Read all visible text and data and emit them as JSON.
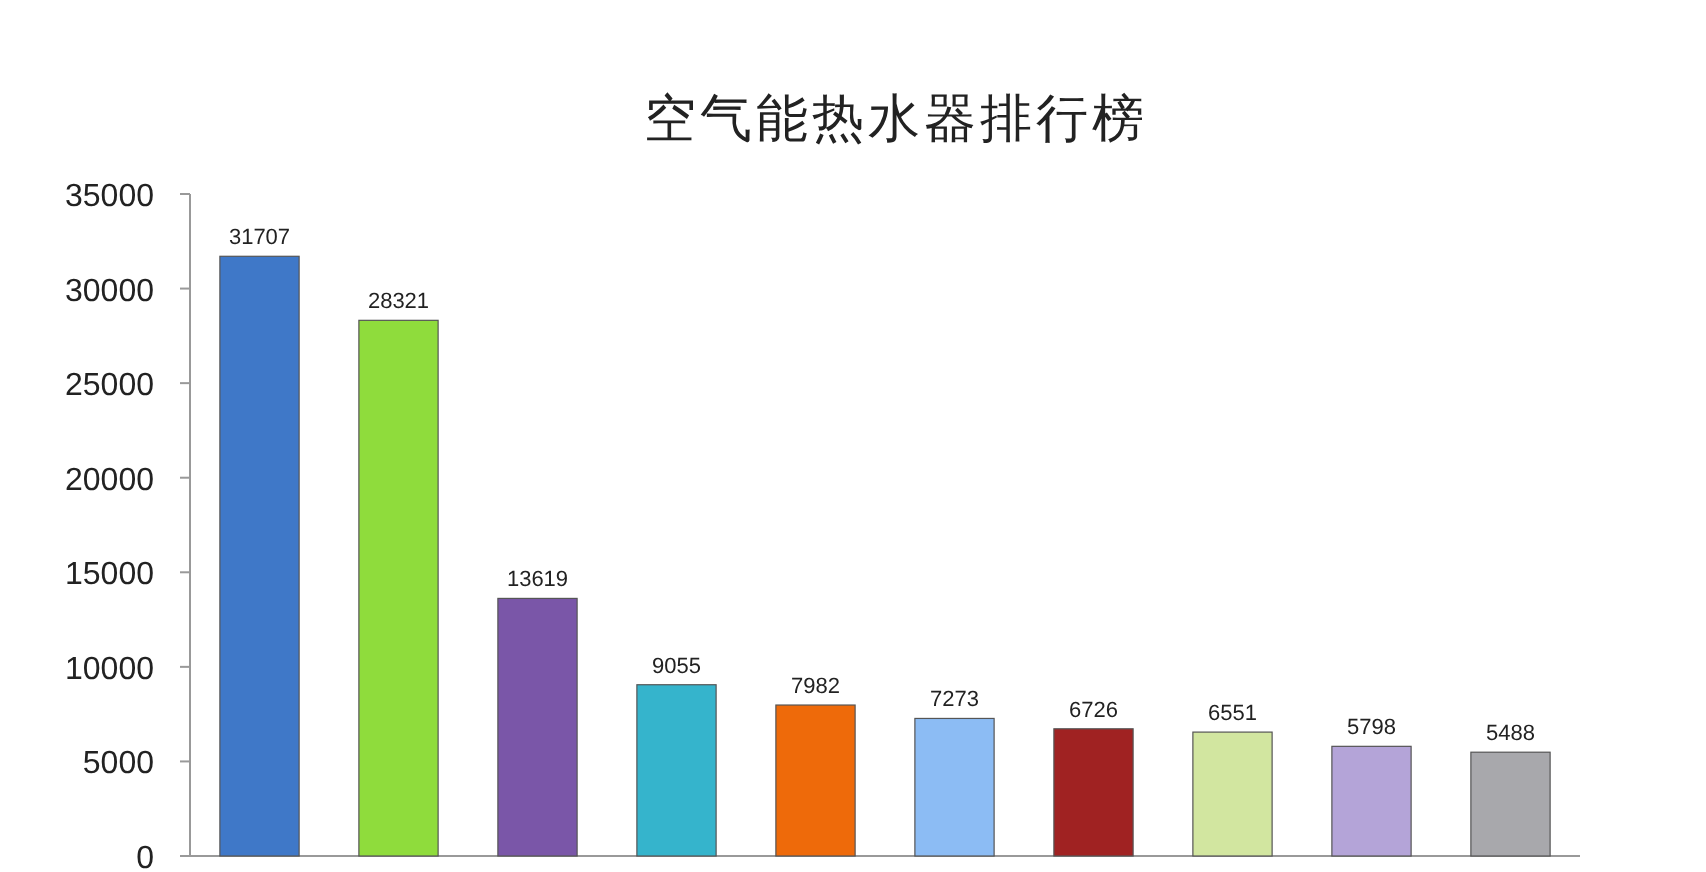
{
  "chart_data": {
    "type": "bar",
    "title": "空气能热水器排行榜",
    "categories": [
      null,
      null,
      null,
      null,
      null,
      null,
      null,
      null,
      null,
      null
    ],
    "values": [
      31707,
      28321,
      13619,
      9055,
      7982,
      7273,
      6726,
      6551,
      5798,
      5488
    ],
    "colors": [
      "#3f78c8",
      "#8fdc3c",
      "#7a56a8",
      "#35b4cc",
      "#ee6a0a",
      "#8cbcf4",
      "#a02222",
      "#d2e6a0",
      "#b4a4d8",
      "#a8a8ac"
    ],
    "ylim": [
      0,
      35000
    ],
    "yticks": [
      0,
      5000,
      10000,
      15000,
      20000,
      25000,
      30000,
      35000
    ],
    "data_labels": true
  }
}
